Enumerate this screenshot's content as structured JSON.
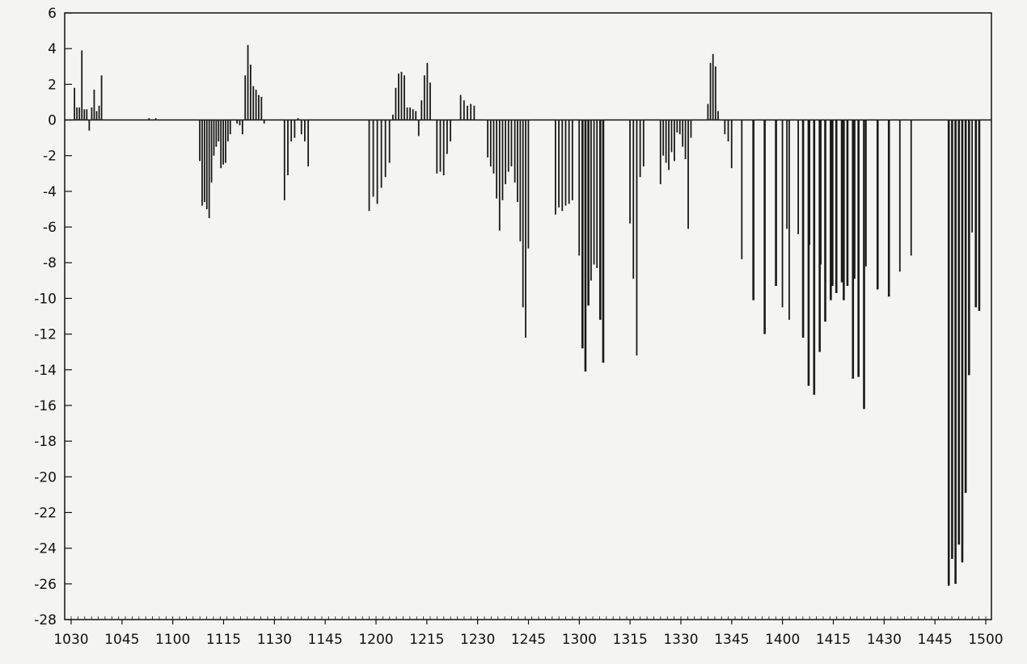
{
  "chart_data": {
    "type": "bar",
    "title": "",
    "xlabel": "",
    "ylabel": "",
    "ylim": [
      -28,
      6
    ],
    "y_ticks": [
      6,
      4,
      2,
      0,
      -2,
      -4,
      -6,
      -8,
      -10,
      -12,
      -14,
      -16,
      -18,
      -20,
      -22,
      -24,
      -26,
      -28
    ],
    "y_tick_labels": [
      "6",
      "4",
      "2",
      "0",
      "-2",
      "-4",
      "-6",
      "-8",
      "-10",
      "-12",
      "-14",
      "-16",
      "-18",
      "-20",
      "-22",
      "-24",
      "-26",
      "-28"
    ],
    "x_tick_labels": [
      "1030",
      "1045",
      "1100",
      "1115",
      "1130",
      "1145",
      "1200",
      "1215",
      "1230",
      "1245",
      "1300",
      "1315",
      "1330",
      "1345",
      "1400",
      "1415",
      "1430",
      "1445",
      "1500"
    ],
    "grid": false,
    "legend": "none",
    "series": [
      {
        "values": [
          [
            1.8,
            0.7,
            0.7,
            3.9,
            0.6,
            0.6,
            -0.6,
            0.7,
            1.7,
            0.5,
            0.8,
            2.5
          ],
          [
            0.1,
            0.1
          ],
          [
            -2.3,
            -4.8,
            -4.6,
            -5.0,
            -5.5,
            -3.5,
            -2.0,
            -1.5,
            -1.2,
            -2.7,
            -2.5,
            -2.4,
            -1.2,
            -0.8
          ],
          [
            -0.2,
            -0.3,
            -0.8,
            2.5,
            4.2,
            3.1,
            1.9,
            1.7,
            1.4,
            1.3,
            -0.2
          ],
          [
            -4.5,
            -3.1,
            -1.2,
            -1.0,
            0.1,
            -0.8,
            -1.2,
            -2.6
          ],
          [
            -5.1,
            -4.3,
            -4.7,
            -3.8,
            -3.2,
            -2.4
          ],
          [
            -3.0,
            -2.9,
            -3.1,
            -1.9,
            -1.2
          ],
          [
            1.4,
            1.1,
            0.8,
            0.9,
            0.8
          ],
          [
            0.3,
            1.8,
            2.6,
            2.7,
            2.5,
            0.7,
            0.7,
            0.6,
            0.5,
            -0.9,
            1.1,
            2.5,
            3.2,
            2.1
          ],
          [
            -2.1,
            -2.6,
            -3.0,
            -4.4,
            -6.2,
            -4.5,
            -3.6,
            -2.9,
            -2.6
          ],
          [
            -3.5,
            -4.6,
            -6.8,
            -10.5,
            -12.2,
            -7.2
          ],
          [
            -5.3,
            -4.9,
            -5.1,
            -4.8,
            -4.7,
            -4.5
          ],
          [
            -7.6,
            -12.8,
            -14.1,
            -10.4,
            -9.0,
            -8.1,
            -8.3,
            -11.2,
            -13.6
          ],
          [
            -5.8,
            -8.9,
            -13.2,
            -3.2,
            -2.6
          ],
          [
            -3.6,
            -2.0,
            -2.4,
            -2.8,
            -1.8,
            -2.3,
            -0.7,
            -0.8,
            -1.5,
            -2.2,
            -6.1,
            -1.0
          ],
          [
            0.9,
            3.2,
            3.7,
            3.0,
            0.5
          ],
          [
            -0.8,
            -1.2,
            -2.7
          ],
          [
            -7.8,
            -10.1,
            -12.0,
            -9.3,
            -6.1,
            -6.4,
            -7.0,
            -8.1,
            -9.3,
            -10.1,
            -8.9,
            -8.2,
            -9.5,
            -9.9,
            -8.5,
            -7.6
          ],
          [
            -10.5,
            -11.2
          ],
          [
            -12.2,
            -14.9,
            -15.4,
            -13.0,
            -11.3,
            -10.1,
            -9.7,
            -9.1,
            -9.3,
            -14.5,
            -14.4,
            -16.2
          ],
          [
            -26.1,
            -24.6,
            -26.0,
            -23.8,
            -24.8,
            -20.9,
            -14.3,
            -6.3,
            -10.5,
            -10.7
          ]
        ],
        "x_ranges": [
          [
            1030.5,
            1039.0
          ],
          [
            1053,
            1054.5
          ],
          [
            1108.0,
            1117.0
          ],
          [
            1119.0,
            1127.0
          ],
          [
            1133.0,
            1140.0
          ],
          [
            1158.0,
            1164.0
          ],
          [
            1178.0,
            1181.5
          ],
          [
            1185.0,
            1188.5
          ],
          [
            1205.0,
            1216.0
          ],
          [
            1233.0,
            1240.0
          ],
          [
            1240.5,
            1245.0
          ],
          [
            1253.0,
            1258.0
          ],
          [
            1260.0,
            1267.0
          ],
          [
            1315.0,
            1319.0
          ],
          [
            1323.5,
            1333.0
          ],
          [
            1337.5,
            1341.0
          ],
          [
            1343.0,
            1345.0
          ],
          [
            1348.0,
            1397.5
          ],
          [
            1400.0,
            1401.5
          ],
          [
            1405.5,
            1423.5
          ],
          [
            1448.5,
            1458.0
          ]
        ]
      }
    ]
  }
}
